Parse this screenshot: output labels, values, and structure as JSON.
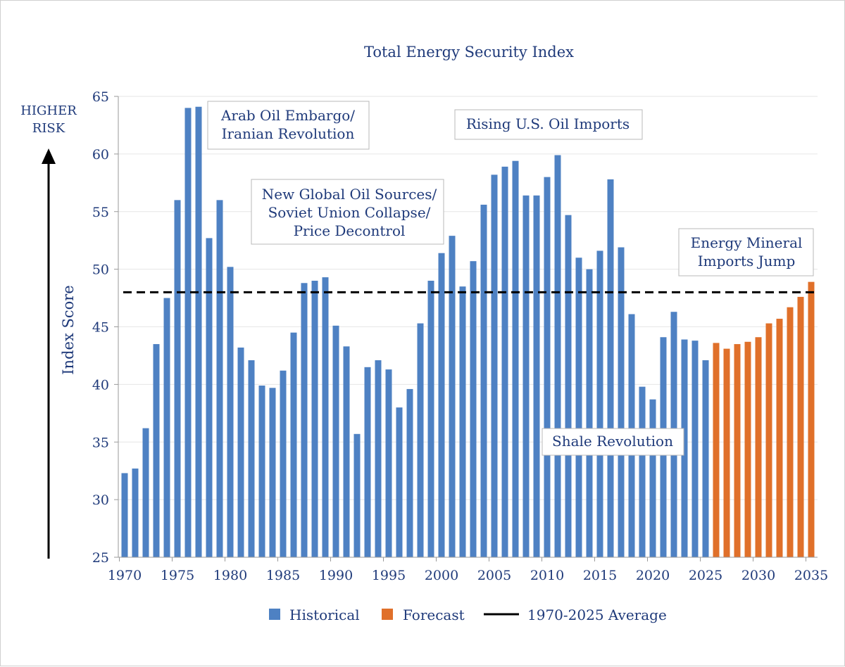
{
  "chart_data": {
    "type": "bar",
    "title": "Total Energy Security Index",
    "ylabel": "Index Score",
    "risk_label": [
      "HIGHER",
      "RISK"
    ],
    "ylim": [
      25,
      65
    ],
    "yticks": [
      25,
      30,
      35,
      40,
      45,
      50,
      55,
      60,
      65
    ],
    "xticks": [
      1970,
      1975,
      1980,
      1985,
      1990,
      1995,
      2000,
      2005,
      2010,
      2015,
      2020,
      2025,
      2030,
      2035
    ],
    "grid": true,
    "legend_position": "bottom",
    "colors": {
      "historical": "#4e81c3",
      "forecast": "#e0702a",
      "average": "#000000",
      "text": "#1f3a7a"
    },
    "series": [
      {
        "name": "Historical",
        "years": [
          1970,
          1971,
          1972,
          1973,
          1974,
          1975,
          1976,
          1977,
          1978,
          1979,
          1980,
          1981,
          1982,
          1983,
          1984,
          1985,
          1986,
          1987,
          1988,
          1989,
          1990,
          1991,
          1992,
          1993,
          1994,
          1995,
          1996,
          1997,
          1998,
          1999,
          2000,
          2001,
          2002,
          2003,
          2004,
          2005,
          2006,
          2007,
          2008,
          2009,
          2010,
          2011,
          2012,
          2013,
          2014,
          2015,
          2016,
          2017,
          2018,
          2019,
          2020,
          2021,
          2022,
          2023,
          2024,
          2025
        ],
        "values": [
          32.3,
          32.7,
          36.2,
          43.5,
          47.5,
          56.0,
          64.0,
          64.1,
          52.7,
          56.0,
          50.2,
          43.2,
          42.1,
          39.9,
          39.7,
          41.2,
          44.5,
          48.8,
          49.0,
          49.3,
          45.1,
          43.3,
          35.7,
          41.5,
          42.1,
          41.3,
          38.0,
          39.6,
          45.3,
          49.0,
          51.4,
          52.9,
          48.5,
          50.7,
          55.6,
          58.2,
          58.9,
          59.4,
          56.4,
          56.4,
          58.0,
          59.9,
          54.7,
          51.0,
          50.0,
          51.6,
          57.8,
          51.9,
          46.1,
          39.8,
          38.7,
          44.1,
          46.3,
          43.9,
          43.8,
          42.1
        ]
      },
      {
        "name": "Forecast",
        "years": [
          2026,
          2027,
          2028,
          2029,
          2030,
          2031,
          2032,
          2033,
          2034,
          2035
        ],
        "values": [
          43.6,
          43.1,
          43.5,
          43.7,
          44.1,
          45.3,
          45.7,
          46.7,
          47.6,
          48.9
        ]
      }
    ],
    "average": {
      "name": "1970-2025 Average",
      "value": 48.0
    },
    "annotations": [
      {
        "id": "embargo",
        "lines": [
          "Arab Oil Embargo/",
          "Iranian Revolution"
        ]
      },
      {
        "id": "new-sources",
        "lines": [
          "New Global Oil Sources/",
          "Soviet Union Collapse/",
          "Price Decontrol"
        ]
      },
      {
        "id": "imports",
        "lines": [
          "Rising U.S. Oil Imports"
        ]
      },
      {
        "id": "shale",
        "lines": [
          "Shale Revolution"
        ]
      },
      {
        "id": "minerals",
        "lines": [
          "Energy Mineral",
          "Imports Jump"
        ]
      }
    ],
    "legend": [
      "Historical",
      "Forecast",
      "1970-2025 Average"
    ]
  }
}
